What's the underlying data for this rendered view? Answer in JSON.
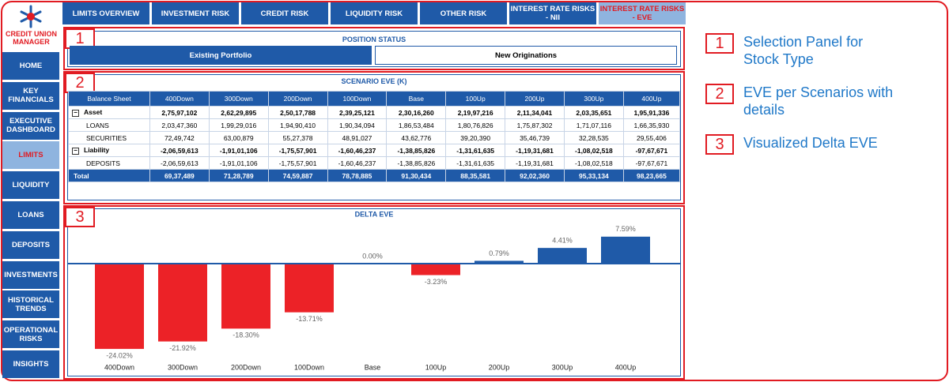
{
  "logo": {
    "text": "CREDIT UNION MANAGER"
  },
  "nav": [
    "HOME",
    "KEY FINANCIALS",
    "EXECUTIVE DASHBOARD",
    "LIMITS",
    "LIQUIDITY",
    "LOANS",
    "DEPOSITS",
    "INVESTMENTS",
    "HISTORICAL TRENDS",
    "OPERATIONAL RISKS",
    "INSIGHTS"
  ],
  "nav_active": 3,
  "tabs": [
    "LIMITS OVERVIEW",
    "INVESTMENT RISK",
    "CREDIT RISK",
    "LIQUIDITY RISK",
    "OTHER RISK",
    "INTEREST RATE RISKS - NII",
    "INTEREST RATE RISKS - EVE"
  ],
  "tab_active": 6,
  "position_status": {
    "title": "POSITION STATUS",
    "options": [
      "Existing Portfolio",
      "New Originations"
    ],
    "active": 0
  },
  "table": {
    "title": "SCENARIO EVE (K)",
    "header": [
      "Balance Sheet",
      "400Down",
      "300Down",
      "200Down",
      "100Down",
      "Base",
      "100Up",
      "200Up",
      "300Up",
      "400Up"
    ],
    "rows": [
      [
        "Asset",
        "2,75,97,102",
        "2,62,29,895",
        "2,50,17,788",
        "2,39,25,121",
        "2,30,16,260",
        "2,19,97,216",
        "2,11,34,041",
        "2,03,35,651",
        "1,95,91,336"
      ],
      [
        "LOANS",
        "2,03,47,360",
        "1,99,29,016",
        "1,94,90,410",
        "1,90,34,094",
        "1,86,53,484",
        "1,80,76,826",
        "1,75,87,302",
        "1,71,07,116",
        "1,66,35,930"
      ],
      [
        "SECURITIES",
        "72,49,742",
        "63,00,879",
        "55,27,378",
        "48,91,027",
        "43,62,776",
        "39,20,390",
        "35,46,739",
        "32,28,535",
        "29,55,406"
      ],
      [
        "Liability",
        "-2,06,59,613",
        "-1,91,01,106",
        "-1,75,57,901",
        "-1,60,46,237",
        "-1,38,85,826",
        "-1,31,61,635",
        "-1,19,31,681",
        "-1,08,02,518",
        "-97,67,671"
      ],
      [
        "DEPOSITS",
        "-2,06,59,613",
        "-1,91,01,106",
        "-1,75,57,901",
        "-1,60,46,237",
        "-1,38,85,826",
        "-1,31,61,635",
        "-1,19,31,681",
        "-1,08,02,518",
        "-97,67,671"
      ],
      [
        "Total",
        "69,37,489",
        "71,28,789",
        "74,59,887",
        "78,78,885",
        "91,30,434",
        "88,35,581",
        "92,02,360",
        "95,33,134",
        "98,23,665"
      ]
    ],
    "group_rows": [
      0,
      3
    ],
    "total_row": 5
  },
  "delta_chart": {
    "type": "bar",
    "title": "DELTA EVE",
    "categories": [
      "400Down",
      "300Down",
      "200Down",
      "100Down",
      "Base",
      "100Up",
      "200Up",
      "300Up",
      "400Up"
    ],
    "values": [
      -24.02,
      -21.92,
      -18.3,
      -13.71,
      0,
      -3.23,
      0.79,
      4.41,
      7.59
    ],
    "value_labels": [
      "-24.02%",
      "-21.92%",
      "-18.30%",
      "-13.71%",
      "0.00%",
      "-3.23%",
      "0.79%",
      "4.41%",
      "7.59%"
    ],
    "positive_color": "#1f5aa8",
    "negative_color": "#ec2227"
  },
  "annotations": [
    {
      "number": "1",
      "text": "Selection Panel for Stock Type"
    },
    {
      "number": "2",
      "text": "EVE per Scenarios with details"
    },
    {
      "number": "3",
      "text": "Visualized Delta EVE"
    }
  ]
}
